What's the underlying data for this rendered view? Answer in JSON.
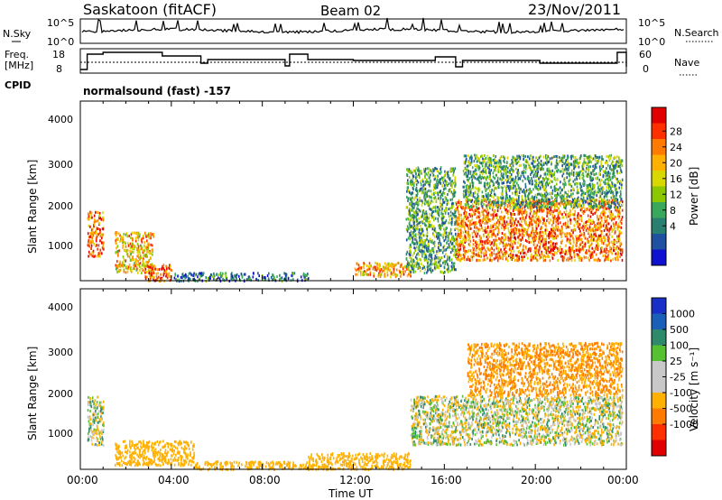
{
  "header": {
    "station": "Saskatoon (fitACF)",
    "beam": "Beam 02",
    "date": "23/Nov/2011"
  },
  "noise_panel": {
    "left_label": "N.Sky",
    "left_ticks": [
      "10^5",
      "10^0"
    ],
    "right_ticks": [
      "10^5",
      "10^0"
    ],
    "right_label": "N.Search"
  },
  "freq_panel": {
    "left_label_1": "Freq.",
    "left_label_2": "[MHz]",
    "left_ticks": [
      "18",
      "8"
    ],
    "right_ticks": [
      "60",
      "0"
    ],
    "right_label": "Nave"
  },
  "cpid": {
    "label": "CPID",
    "value": "normalsound (fast) -157"
  },
  "panels": [
    {
      "ylabel": "Slant Range [km]",
      "yticks": [
        "4000",
        "3000",
        "2000",
        "1000"
      ]
    },
    {
      "ylabel": "Slant Range [km]",
      "yticks": [
        "4000",
        "3000",
        "2000",
        "1000"
      ]
    }
  ],
  "xaxis": {
    "ticks": [
      "00:00",
      "04:00",
      "08:00",
      "12:00",
      "16:00",
      "20:00",
      "00:00"
    ],
    "label": "Time UT"
  },
  "power_bar": {
    "label": "Power [dB]",
    "ticks": [
      "28",
      "24",
      "20",
      "16",
      "12",
      "8",
      "4"
    ],
    "colors": [
      "#e00000",
      "#ff3000",
      "#ff7a00",
      "#ffb000",
      "#d8d800",
      "#8cc800",
      "#3aa85a",
      "#2a8070",
      "#2050a0",
      "#1010d0"
    ]
  },
  "velocity_bar": {
    "label": "Velocity [m s⁻¹]",
    "ticks": [
      "1000",
      "500",
      "100",
      "25",
      "-25",
      "-100",
      "-500",
      "-1000"
    ],
    "colors": [
      "#1a2ec8",
      "#1a60b8",
      "#2e8a6a",
      "#55c030",
      "#c8c8c8",
      "#c8c8c8",
      "#ffb000",
      "#ff7a00",
      "#ff3000",
      "#e00000"
    ]
  },
  "chart_data": [
    {
      "type": "heatmap",
      "title": "Power",
      "xlabel": "Time UT",
      "ylabel": "Slant Range [km]",
      "xlim": [
        "00:00",
        "24:00"
      ],
      "ylim": [
        180,
        4600
      ],
      "colorbar": {
        "label": "Power [dB]",
        "range": [
          0,
          30
        ]
      },
      "regions": [
        {
          "t": [
            0.3,
            1.0
          ],
          "range": [
            800,
            1900
          ],
          "value": 24
        },
        {
          "t": [
            1.5,
            3.2
          ],
          "range": [
            400,
            1400
          ],
          "value": 20
        },
        {
          "t": [
            2.8,
            4.0
          ],
          "range": [
            200,
            600
          ],
          "value": 26
        },
        {
          "t": [
            4.0,
            10.0
          ],
          "range": [
            200,
            400
          ],
          "value": 8
        },
        {
          "t": [
            12.0,
            14.5
          ],
          "range": [
            300,
            650
          ],
          "value": 22
        },
        {
          "t": [
            14.3,
            16.5
          ],
          "range": [
            400,
            3000
          ],
          "value": 12
        },
        {
          "t": [
            16.5,
            23.8
          ],
          "range": [
            700,
            2200
          ],
          "value": 24
        },
        {
          "t": [
            16.8,
            23.8
          ],
          "range": [
            2000,
            3300
          ],
          "value": 12
        }
      ]
    },
    {
      "type": "heatmap",
      "title": "Velocity",
      "xlabel": "Time UT",
      "ylabel": "Slant Range [km]",
      "xlim": [
        "00:00",
        "24:00"
      ],
      "ylim": [
        180,
        4600
      ],
      "colorbar": {
        "label": "Velocity [m s⁻¹]",
        "range": [
          -1000,
          1000
        ]
      },
      "regions": [
        {
          "t": [
            0.3,
            1.0
          ],
          "range": [
            800,
            2000
          ],
          "value": 0
        },
        {
          "t": [
            1.5,
            5.0
          ],
          "range": [
            300,
            900
          ],
          "value": -200
        },
        {
          "t": [
            5.0,
            10.0
          ],
          "range": [
            200,
            400
          ],
          "value": -150
        },
        {
          "t": [
            10.0,
            14.5
          ],
          "range": [
            200,
            600
          ],
          "value": -200
        },
        {
          "t": [
            14.5,
            23.8
          ],
          "range": [
            800,
            2000
          ],
          "value": 0
        },
        {
          "t": [
            17.0,
            23.8
          ],
          "range": [
            2000,
            3300
          ],
          "value": -300
        }
      ]
    }
  ]
}
